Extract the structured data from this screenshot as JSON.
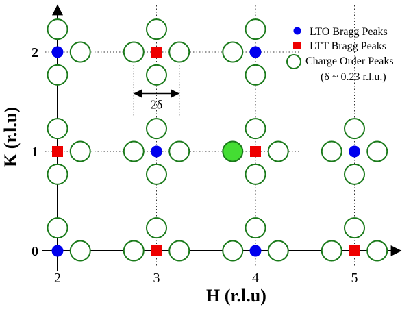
{
  "chart_data": {
    "type": "scatter",
    "title": "",
    "xlabel": "H (r.l.u)",
    "ylabel": "K (r.l.u)",
    "xlim": [
      1.95,
      5.6
    ],
    "ylim": [
      -0.05,
      2.4
    ],
    "xticks": [
      2,
      3,
      4,
      5
    ],
    "yticks": [
      0,
      1,
      2
    ],
    "xtick_labels": [
      "2",
      "3",
      "4",
      "5"
    ],
    "ytick_labels": [
      "0",
      "1",
      "2"
    ],
    "grid": "dotted",
    "legend_position": "top-right",
    "delta": 0.23,
    "series": [
      {
        "name": "LTO Bragg Peaks",
        "marker": "filled-circle",
        "color": "#0000ee",
        "points": [
          [
            2,
            2
          ],
          [
            4,
            2
          ],
          [
            3,
            1
          ],
          [
            5,
            1
          ],
          [
            2,
            0
          ],
          [
            4,
            0
          ]
        ]
      },
      {
        "name": "LTT Bragg Peaks",
        "marker": "filled-square",
        "color": "#ee0000",
        "points": [
          [
            3,
            2
          ],
          [
            2,
            1
          ],
          [
            4,
            1
          ],
          [
            3,
            0
          ],
          [
            5,
            0
          ]
        ]
      },
      {
        "name": "Charge Order Peaks",
        "marker": "open-circle",
        "color": "#1a7a1a",
        "points": [
          [
            2,
            2.23
          ],
          [
            2,
            1.77
          ],
          [
            2.23,
            2
          ],
          [
            3,
            2.23
          ],
          [
            3,
            1.77
          ],
          [
            2.77,
            2
          ],
          [
            3.23,
            2
          ],
          [
            4,
            2.23
          ],
          [
            4,
            1.77
          ],
          [
            3.77,
            2
          ],
          [
            2,
            1.23
          ],
          [
            2,
            0.77
          ],
          [
            2.23,
            1
          ],
          [
            3,
            1.23
          ],
          [
            3,
            0.77
          ],
          [
            2.77,
            1
          ],
          [
            3.23,
            1
          ],
          [
            4,
            1.23
          ],
          [
            4,
            0.77
          ],
          [
            4.23,
            1
          ],
          [
            5,
            1.23
          ],
          [
            5,
            0.77
          ],
          [
            4.77,
            1
          ],
          [
            5.23,
            1
          ],
          [
            2,
            0.23
          ],
          [
            2.23,
            0
          ],
          [
            3,
            0.23
          ],
          [
            2.77,
            0
          ],
          [
            3.23,
            0
          ],
          [
            4,
            0.23
          ],
          [
            3.77,
            0
          ],
          [
            4.23,
            0
          ],
          [
            5,
            0.23
          ],
          [
            4.77,
            0
          ],
          [
            5.23,
            0
          ]
        ]
      }
    ],
    "highlight": {
      "marker": "filled-circle-large",
      "color": "#44dd33",
      "point": [
        3.77,
        1
      ]
    },
    "legend": {
      "lto_label": "LTO Bragg Peaks",
      "ltt_label": "LTT Bragg Peaks",
      "co_label": "Charge Order Peaks",
      "co_note": "(δ ~ 0.23 r.l.u.)"
    },
    "annotation": {
      "label": "2δ",
      "from": [
        2.77,
        1.5
      ],
      "to": [
        3.23,
        1.5
      ]
    },
    "colors": {
      "lto": "#0000ee",
      "ltt": "#ee0000",
      "co": "#1a7a1a",
      "highlight": "#44dd33"
    }
  }
}
